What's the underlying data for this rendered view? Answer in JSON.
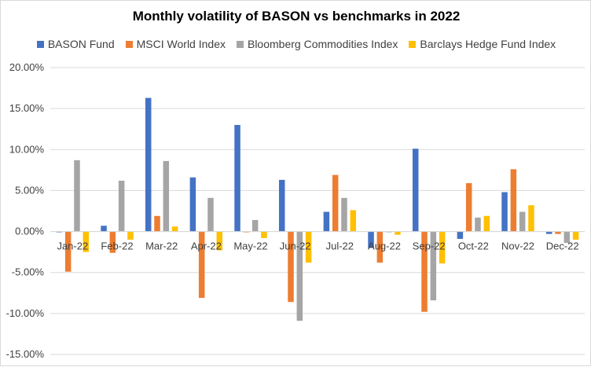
{
  "chart_data": {
    "type": "bar",
    "title": "Monthly volatility of BASON vs benchmarks in 2022",
    "xlabel": "",
    "ylabel": "",
    "ylim": [
      -15,
      20
    ],
    "yticks": [
      "20.00%",
      "15.00%",
      "10.00%",
      "5.00%",
      "0.00%",
      "-5.00%",
      "-10.00%",
      "-15.00%"
    ],
    "ytick_values": [
      20,
      15,
      10,
      5,
      0,
      -5,
      -10,
      -15
    ],
    "grid": true,
    "legend_position": "top",
    "categories": [
      "Jan-22",
      "Feb-22",
      "Mar-22",
      "Apr-22",
      "May-22",
      "Jun-22",
      "Jul-22",
      "Aug-22",
      "Sep-22",
      "Oct-22",
      "Nov-22",
      "Dec-22"
    ],
    "series": [
      {
        "name": "BASON Fund",
        "color": "#4472c4",
        "values": [
          -0.1,
          0.7,
          16.3,
          6.6,
          13.0,
          6.3,
          2.4,
          -2.0,
          10.1,
          -0.9,
          4.8,
          -0.3
        ]
      },
      {
        "name": "MSCI World Index",
        "color": "#ed7d31",
        "values": [
          -4.9,
          -2.6,
          1.9,
          -8.1,
          -0.1,
          -8.6,
          6.9,
          -3.8,
          -9.8,
          5.9,
          7.6,
          -0.3
        ]
      },
      {
        "name": "Bloomberg Commodities Index",
        "color": "#a5a5a5",
        "values": [
          8.7,
          6.2,
          8.6,
          4.1,
          1.4,
          -10.9,
          4.1,
          -0.1,
          -8.4,
          1.7,
          2.4,
          -1.4
        ]
      },
      {
        "name": "Barclays Hedge Fund Index",
        "color": "#ffc000",
        "values": [
          -2.5,
          -1.0,
          0.6,
          -2.3,
          -0.8,
          -3.8,
          2.6,
          -0.4,
          -3.9,
          1.9,
          3.2,
          -1.0
        ]
      }
    ]
  }
}
